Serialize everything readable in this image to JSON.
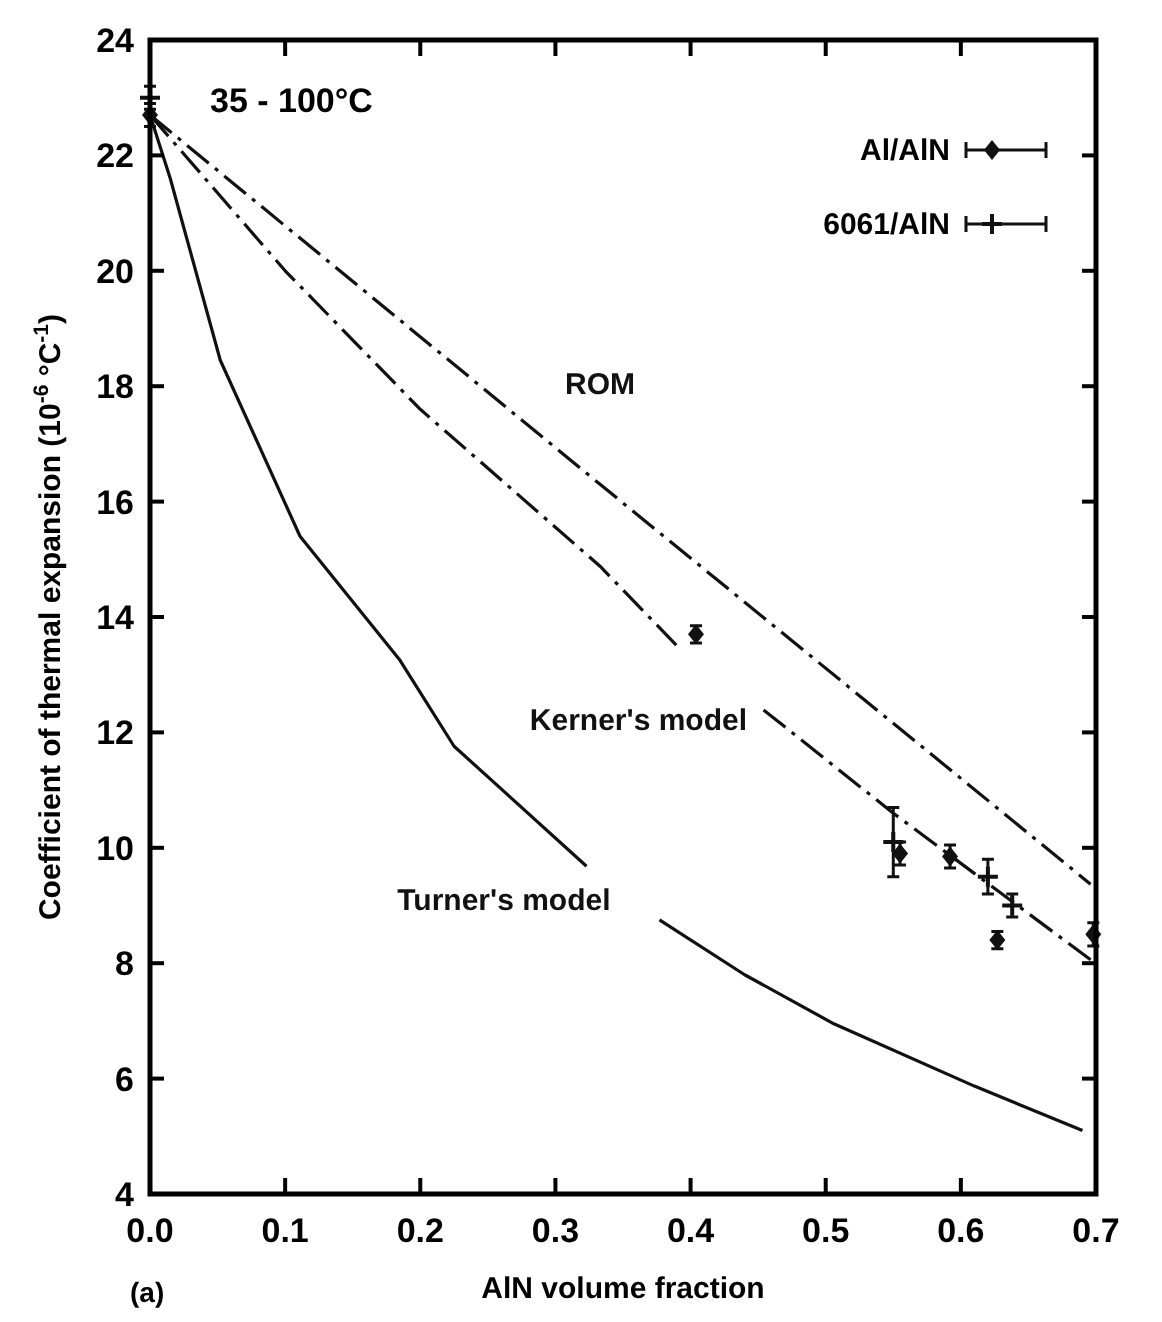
{
  "chart_data": {
    "type": "line",
    "xlabel": "AlN volume fraction",
    "ylabel": "Coefficient of thermal expansion (10$^{-6}$ °C$^{-1}$)",
    "annotations": [
      "35 - 100°C",
      "(a)"
    ],
    "xlim": [
      0,
      0.7
    ],
    "ylim": [
      4,
      24
    ],
    "xticks": [
      {
        "value": 0,
        "label": "0.0"
      },
      0.1,
      0.2,
      0.3,
      0.4,
      0.5,
      0.6,
      0.7
    ],
    "yticks": [
      4,
      6,
      8,
      10,
      12,
      14,
      16,
      18,
      20,
      22,
      24
    ],
    "legend": "top right",
    "series": [
      {
        "name": "ROM",
        "color": "#111111",
        "line_style": "dashed",
        "x": [
          0,
          0.333,
          0.696
        ],
        "values": [
          22.7,
          16.3,
          9.37
        ]
      },
      {
        "name": "Kerner's model",
        "color": "#111111",
        "line_style": "dashed",
        "x": [
          0,
          0.1,
          0.2,
          0.333,
          0.39,
          0.42,
          0.454,
          0.55,
          0.696
        ],
        "values": [
          22.7,
          20.0,
          17.6,
          14.88,
          13.5,
          null,
          12.39,
          10.6,
          8.06
        ]
      },
      {
        "name": "Turner's model",
        "color": "#111111",
        "line_style": "solid",
        "x": [
          0,
          0.015,
          0.052,
          0.111,
          0.185,
          0.225,
          0.323,
          0.35,
          0.377,
          0.44,
          0.506,
          0.61,
          0.69
        ],
        "values": [
          22.7,
          21.6,
          18.45,
          15.4,
          13.25,
          11.76,
          9.68,
          null,
          8.75,
          7.8,
          6.95,
          5.87,
          5.1
        ]
      },
      {
        "name": "Al/AlN",
        "type": "scatter",
        "marker": "diamond",
        "color": "#111111",
        "x": [
          0,
          0.404,
          0.555,
          0.592,
          0.627,
          0.698
        ],
        "values": [
          22.7,
          13.7,
          9.9,
          9.85,
          8.4,
          8.5
        ],
        "errors": [
          0.2,
          0.15,
          0.2,
          0.2,
          0.15,
          0.2
        ]
      },
      {
        "name": "6061/AlN",
        "type": "scatter",
        "marker": "cross",
        "color": "#111111",
        "x": [
          0,
          0.55,
          0.62,
          0.638
        ],
        "values": [
          23.0,
          10.1,
          9.5,
          9.0
        ],
        "errors": [
          0.2,
          0.6,
          0.3,
          0.2
        ]
      }
    ]
  }
}
